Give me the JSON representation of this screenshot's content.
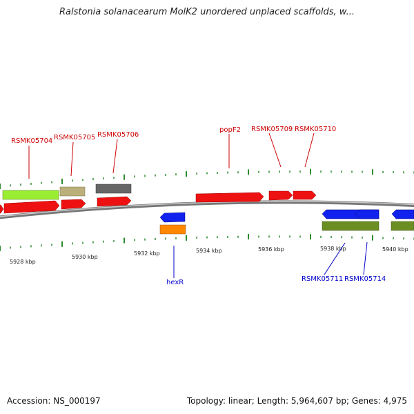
{
  "title": "Ralstonia solanacearum MolK2 unordered unplaced scaffolds, w...",
  "footer": {
    "accession": "Accession: NS_000197",
    "summary": "Topology: linear; Length: 5,964,607 bp; Genes: 4,975"
  },
  "colors": {
    "backbone": "#8a8a8a",
    "tick": "#2e8b2e",
    "forward_label": "#cc0000",
    "reverse_label": "#0000cc",
    "red": "#ee1111",
    "lime": "#99ee33",
    "tan": "#bbb07a",
    "gray": "#666666",
    "blue": "#1122ee",
    "orange": "#ff8800",
    "olive": "#6b8e23"
  },
  "axis_labels": [
    "5928 kbp",
    "5930 kbp",
    "5932 kbp",
    "5934 kbp",
    "5936 kbp",
    "5938 kbp",
    "5940 kbp"
  ],
  "upper_labels": [
    "RSMK05704",
    "RSMK05705",
    "RSMK05706",
    "popF2",
    "RSMK05709",
    "RSMK05710"
  ],
  "lower_labels": [
    "hexR",
    "RSMK05711",
    "RSMK05714"
  ]
}
